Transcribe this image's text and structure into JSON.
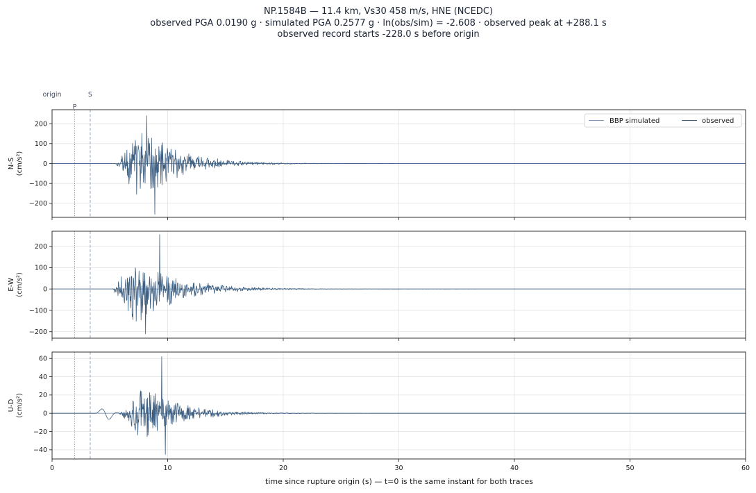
{
  "title": {
    "line1": "NP.1584B  —  11.4 km, Vs30 458 m/s, HNE (NCEDC)",
    "line2": "observed PGA 0.0190 g   ·   simulated PGA 0.2577 g   ·   ln(obs/sim) = -2.608   ·   observed peak at +288.1 s",
    "line3": "observed record starts -228.0 s before origin"
  },
  "markers": {
    "origin_label": "origin",
    "p_label": "P",
    "s_label": "S",
    "p_time": 1.95,
    "s_time": 3.3
  },
  "colors": {
    "trace": "#3d5f82",
    "simulated": "#7f9bb8",
    "p_line": "#8a96a6",
    "s_line": "#7f9bb8"
  },
  "chart_data": {
    "type": "line",
    "xlabel": "time since rupture origin (s)   —   t=0 is the same instant for both traces",
    "xlim": [
      0,
      60
    ],
    "xticks": [
      0,
      10,
      20,
      30,
      40,
      50,
      60
    ],
    "grid": true,
    "legend": {
      "placement": "top-right",
      "entries": [
        "BBP simulated",
        "observed"
      ]
    },
    "panels": [
      {
        "ylabel": "N-S",
        "yunit": "(cm/s²)",
        "ylim": [
          -270,
          270
        ],
        "yticks": [
          -200,
          -100,
          0,
          100,
          200
        ],
        "onset": 5.5,
        "peak_time": 8.9,
        "peak_value": -255,
        "peak_pos_time": 8.2,
        "peak_pos_value": 240,
        "decay": 3.2,
        "amplitude": 150,
        "precursor": 0,
        "seed": 11
      },
      {
        "ylabel": "E-W",
        "yunit": "(cm/s²)",
        "ylim": [
          -230,
          270
        ],
        "yticks": [
          -200,
          -100,
          0,
          100,
          200
        ],
        "onset": 5.2,
        "peak_time": 9.3,
        "peak_value": 255,
        "peak_pos_time": 8.1,
        "peak_pos_value": -210,
        "decay": 3.4,
        "amplitude": 130,
        "precursor": 0,
        "seed": 23
      },
      {
        "ylabel": "U-D",
        "yunit": "(cm/s²)",
        "ylim": [
          -50,
          67
        ],
        "yticks": [
          -40,
          -20,
          0,
          20,
          40,
          60
        ],
        "onset": 5.8,
        "peak_time": 9.5,
        "peak_value": 62,
        "peak_pos_time": 9.8,
        "peak_pos_value": -45,
        "decay": 3.0,
        "amplitude": 24,
        "precursor": 8,
        "seed": 37
      }
    ]
  }
}
